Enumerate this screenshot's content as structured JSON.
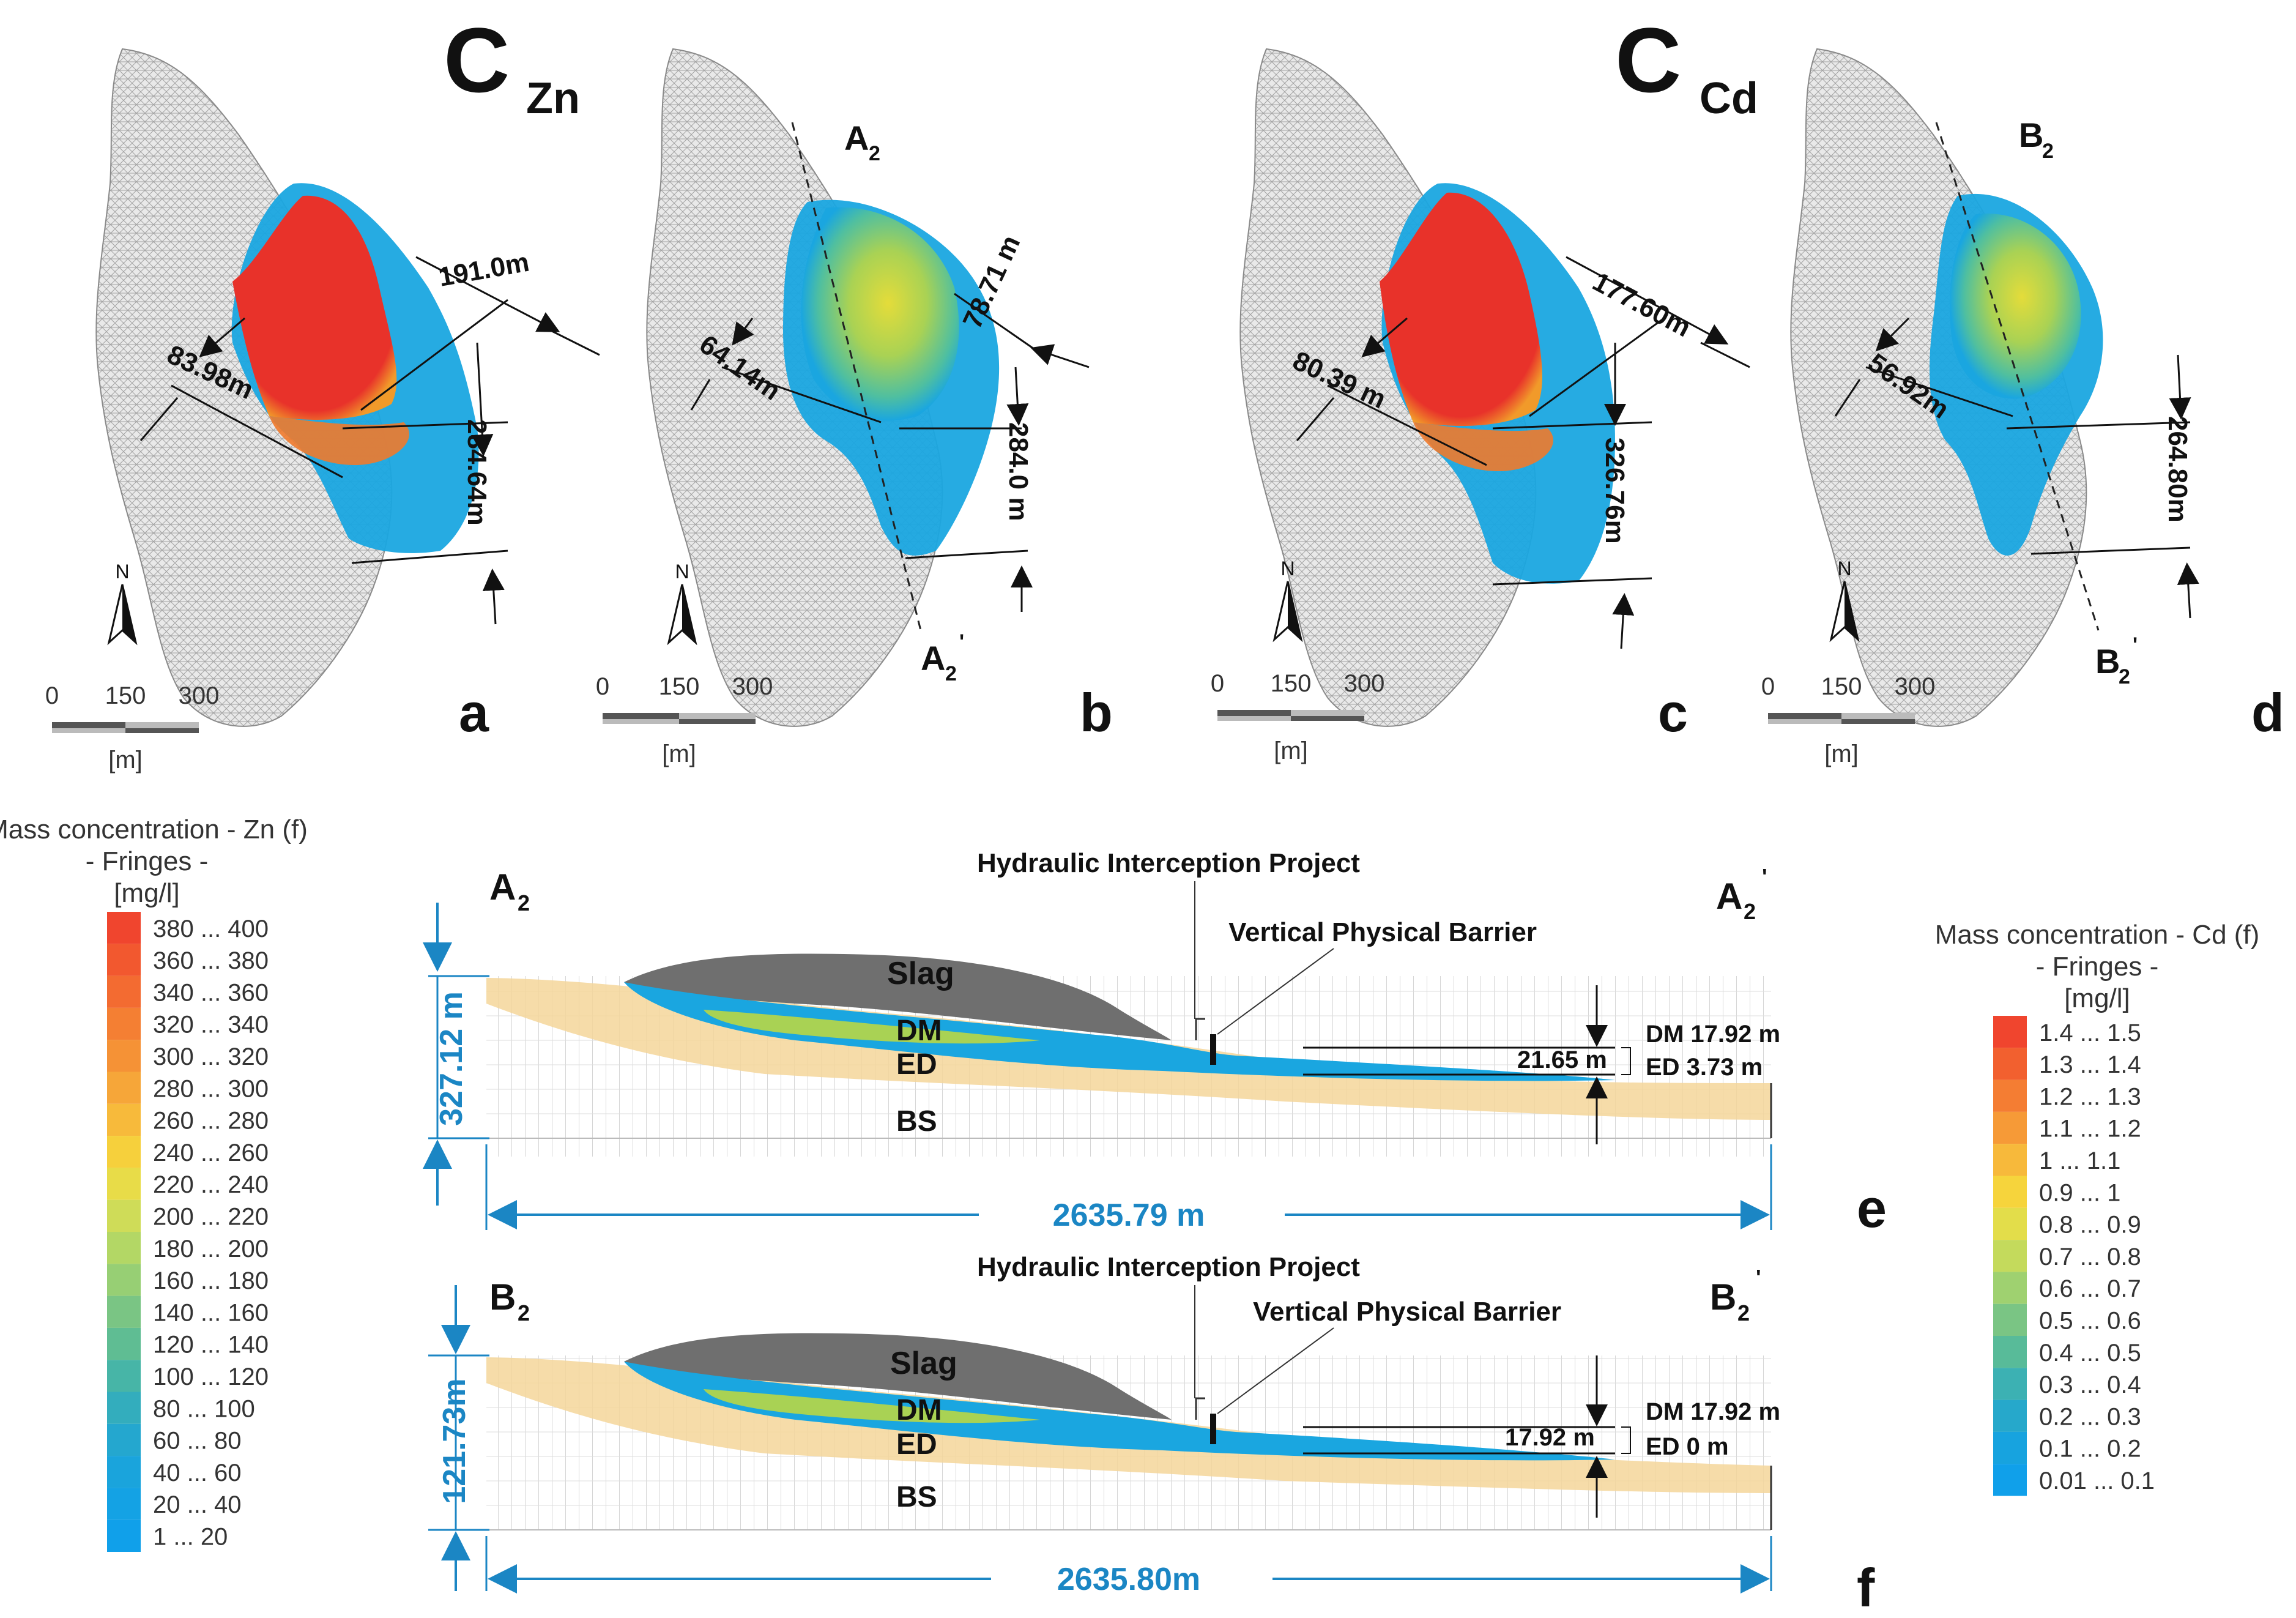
{
  "panels_top": {
    "title_zn": {
      "main": "C",
      "sub": "Zn"
    },
    "title_cd": {
      "main": "C",
      "sub": "Cd"
    },
    "a": {
      "letter": "a",
      "dims": [
        "191.0m",
        "83.98m",
        "284.64m"
      ]
    },
    "b": {
      "letter": "b",
      "dims": [
        "78.71 m",
        "64.14m",
        "284.0 m"
      ],
      "section_start": "A",
      "section_end": "A",
      "sub": "2",
      "prime": "'"
    },
    "c": {
      "letter": "c",
      "dims": [
        "177.60m",
        "80.39 m",
        "326.76m"
      ]
    },
    "d": {
      "letter": "d",
      "dims": [
        "56.92m",
        "264.80m"
      ],
      "section_start": "B",
      "section_end": "B",
      "sub": "2",
      "prime": "'"
    },
    "north": "N",
    "scale": {
      "ticks": [
        "0",
        "150",
        "300"
      ],
      "unit": "[m]"
    }
  },
  "legend_zn": {
    "title": "Mass concentration - Zn (f)",
    "subtitle": "- Fringes -",
    "unit": "[mg/l]",
    "items": [
      {
        "label": "380 ... 400",
        "color": "#f0452e"
      },
      {
        "label": "360 ... 380",
        "color": "#f2582f"
      },
      {
        "label": "340 ... 360",
        "color": "#f36b31"
      },
      {
        "label": "320 ... 340",
        "color": "#f47f33"
      },
      {
        "label": "300 ... 320",
        "color": "#f59236"
      },
      {
        "label": "280 ... 300",
        "color": "#f6a639"
      },
      {
        "label": "260 ... 280",
        "color": "#f7ba3b"
      },
      {
        "label": "240 ... 260",
        "color": "#f6d03c"
      },
      {
        "label": "220 ... 240",
        "color": "#e8dc48"
      },
      {
        "label": "200 ... 220",
        "color": "#cfdc58"
      },
      {
        "label": "180 ... 200",
        "color": "#b3d765"
      },
      {
        "label": "160 ... 180",
        "color": "#97cf74"
      },
      {
        "label": "140 ... 160",
        "color": "#7ac584"
      },
      {
        "label": "120 ... 140",
        "color": "#5fbd93"
      },
      {
        "label": "100 ... 120",
        "color": "#47b5a7"
      },
      {
        "label": "80 ... 100",
        "color": "#33adbd"
      },
      {
        "label": "60 ... 80",
        "color": "#24a7cf"
      },
      {
        "label": "40 ... 60",
        "color": "#1aa4dc"
      },
      {
        "label": "20 ... 40",
        "color": "#14a2e4"
      },
      {
        "label": "1 ... 20",
        "color": "#10a0ea"
      }
    ]
  },
  "legend_cd": {
    "title": "Mass concentration - Cd (f)",
    "subtitle": "- Fringes -",
    "unit": "[mg/l]",
    "items": [
      {
        "label": "1.4 ... 1.5",
        "color": "#f0452e"
      },
      {
        "label": "1.3 ... 1.4",
        "color": "#f2602f"
      },
      {
        "label": "1.2 ... 1.3",
        "color": "#f47d33"
      },
      {
        "label": "1.1 ... 1.2",
        "color": "#f69a37"
      },
      {
        "label": "1 ... 1.1",
        "color": "#f7b93b"
      },
      {
        "label": "0.9 ... 1",
        "color": "#f6d43c"
      },
      {
        "label": "0.8 ... 0.9",
        "color": "#e3dd4a"
      },
      {
        "label": "0.7 ... 0.8",
        "color": "#c4da5c"
      },
      {
        "label": "0.6 ... 0.7",
        "color": "#9fd170"
      },
      {
        "label": "0.5 ... 0.6",
        "color": "#7ac584"
      },
      {
        "label": "0.4 ... 0.5",
        "color": "#58bb99"
      },
      {
        "label": "0.3 ... 0.4",
        "color": "#3cb1b3"
      },
      {
        "label": "0.2 ... 0.3",
        "color": "#26a8cb"
      },
      {
        "label": "0.1 ... 0.2",
        "color": "#17a3df"
      },
      {
        "label": "0.01 ... 0.1",
        "color": "#10a0ea"
      }
    ]
  },
  "section_e": {
    "letter": "e",
    "start": "A",
    "end": "A",
    "sub": "2",
    "prime": "'",
    "project_label": "Hydraulic Interception Project",
    "barrier_label": "Vertical Physical Barrier",
    "layers": {
      "slag": "Slag",
      "dm": "DM",
      "ed": "ED",
      "bs": "BS"
    },
    "height": "327.12 m",
    "length": "2635.79 m",
    "total": "21.65 m",
    "dm_value": "DM 17.92 m",
    "ed_value": "ED  3.73 m"
  },
  "section_f": {
    "letter": "f",
    "start": "B",
    "end": "B",
    "sub": "2",
    "prime": "'",
    "project_label": "Hydraulic Interception Project",
    "barrier_label": "Vertical Physical Barrier",
    "layers": {
      "slag": "Slag",
      "dm": "DM",
      "ed": "ED",
      "bs": "BS"
    },
    "height": "121.73m",
    "length": "2635.80m",
    "total": "17.92 m",
    "dm_value": "DM 17.92 m",
    "ed_value": "ED  0 m"
  },
  "colors": {
    "accent_blue": "#1b86c4",
    "slag_gray": "#6f6f6f",
    "sand": "#f5d69a",
    "plume_red": "#e8322a",
    "plume_blue": "#1aa6e0"
  }
}
